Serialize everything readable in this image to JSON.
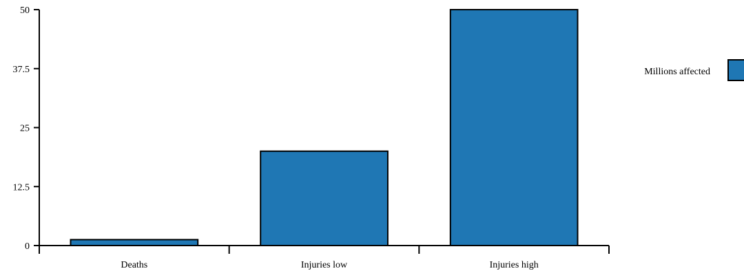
{
  "chart_data": {
    "type": "bar",
    "categories": [
      "Deaths",
      "Injuries low",
      "Injuries high"
    ],
    "series": [
      {
        "name": "Millions affected",
        "values": [
          1.25,
          20,
          50
        ],
        "color": "#1f77b4"
      }
    ],
    "y_ticks": [
      "0",
      "12.5",
      "25",
      "37.5",
      "50"
    ],
    "y_tick_values": [
      0,
      12.5,
      25,
      37.5,
      50
    ],
    "ylim": [
      0,
      50
    ],
    "grid": false,
    "legend_position": "right",
    "title": "",
    "xlabel": "",
    "ylabel": ""
  }
}
